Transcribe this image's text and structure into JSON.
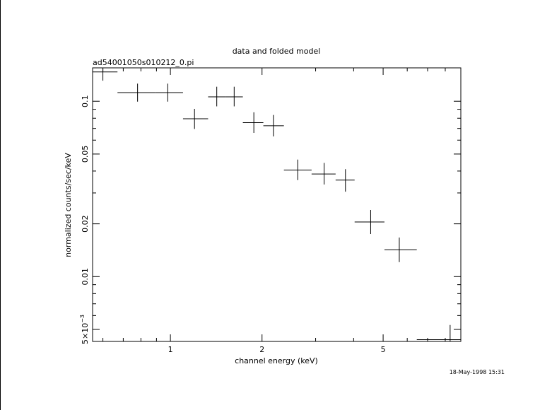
{
  "chart_data": {
    "type": "scatter",
    "title": "data and folded model",
    "subtitle": "ad54001050s010212_0.pi",
    "xlabel": "channel energy (keV)",
    "ylabel": "normalized counts/sec/keV",
    "timestamp": "18-May-1998 15:31",
    "x_scale": "log",
    "y_scale": "log",
    "xlim": [
      0.555,
      9.0
    ],
    "ylim": [
      0.00427,
      0.155
    ],
    "grid": false,
    "x_ticks": [
      {
        "value": 1,
        "label": "1"
      },
      {
        "value": 2,
        "label": "2"
      },
      {
        "value": 5,
        "label": "5"
      }
    ],
    "y_ticks": [
      {
        "value": 0.1,
        "label": "0.1"
      },
      {
        "value": 0.05,
        "label": "0.05"
      },
      {
        "value": 0.02,
        "label": "0.02"
      },
      {
        "value": 0.01,
        "label": "0.01"
      },
      {
        "value": 0.005,
        "label": "5×10",
        "exponent": "−3"
      }
    ],
    "series": [
      {
        "points": [
          {
            "x": 0.6,
            "y": 0.147,
            "x_lo": 0.555,
            "x_hi": 0.67,
            "y_lo": 0.131,
            "y_hi": 0.165
          },
          {
            "x": 0.78,
            "y": 0.112,
            "x_lo": 0.67,
            "x_hi": 0.89,
            "y_lo": 0.0995,
            "y_hi": 0.126
          },
          {
            "x": 0.98,
            "y": 0.112,
            "x_lo": 0.89,
            "x_hi": 1.1,
            "y_lo": 0.0995,
            "y_hi": 0.126
          },
          {
            "x": 1.2,
            "y": 0.0795,
            "x_lo": 1.1,
            "x_hi": 1.33,
            "y_lo": 0.0695,
            "y_hi": 0.0905
          },
          {
            "x": 1.42,
            "y": 0.106,
            "x_lo": 1.33,
            "x_hi": 1.52,
            "y_lo": 0.0935,
            "y_hi": 0.121
          },
          {
            "x": 1.62,
            "y": 0.106,
            "x_lo": 1.52,
            "x_hi": 1.73,
            "y_lo": 0.0935,
            "y_hi": 0.121
          },
          {
            "x": 1.88,
            "y": 0.0755,
            "x_lo": 1.73,
            "x_hi": 2.02,
            "y_lo": 0.066,
            "y_hi": 0.0865
          },
          {
            "x": 2.18,
            "y": 0.0725,
            "x_lo": 2.02,
            "x_hi": 2.36,
            "y_lo": 0.063,
            "y_hi": 0.0835
          },
          {
            "x": 2.62,
            "y": 0.0405,
            "x_lo": 2.36,
            "x_hi": 2.91,
            "y_lo": 0.0355,
            "y_hi": 0.0465
          },
          {
            "x": 3.2,
            "y": 0.0385,
            "x_lo": 2.91,
            "x_hi": 3.49,
            "y_lo": 0.0335,
            "y_hi": 0.0445
          },
          {
            "x": 3.76,
            "y": 0.0355,
            "x_lo": 3.49,
            "x_hi": 4.03,
            "y_lo": 0.0305,
            "y_hi": 0.041
          },
          {
            "x": 4.55,
            "y": 0.0205,
            "x_lo": 4.03,
            "x_hi": 5.05,
            "y_lo": 0.0175,
            "y_hi": 0.024
          },
          {
            "x": 5.65,
            "y": 0.0142,
            "x_lo": 5.05,
            "x_hi": 6.45,
            "y_lo": 0.0121,
            "y_hi": 0.0167
          },
          {
            "x": 8.3,
            "y": 0.00437,
            "x_lo": 6.45,
            "x_hi": 9.0,
            "y_lo": 0.0036,
            "y_hi": 0.0053
          }
        ]
      }
    ]
  }
}
